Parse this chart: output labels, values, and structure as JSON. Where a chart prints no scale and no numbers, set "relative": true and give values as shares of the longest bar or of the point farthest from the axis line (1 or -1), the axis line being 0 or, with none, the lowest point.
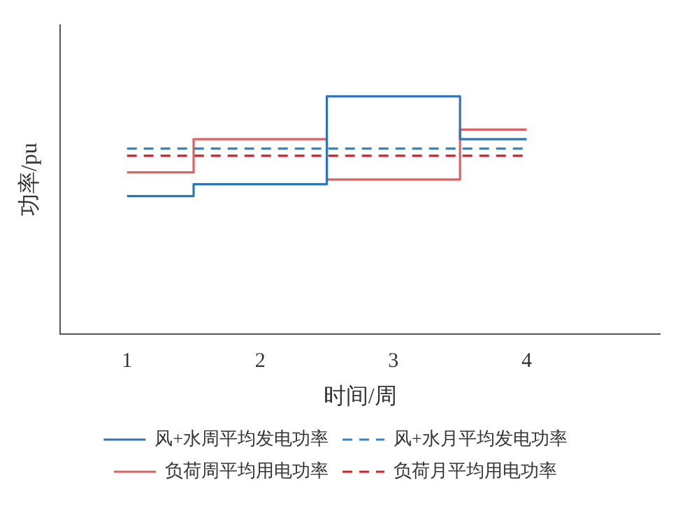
{
  "chart_data": {
    "type": "step",
    "relative": true,
    "xlabel": "时间/周",
    "ylabel": "功率/pu",
    "categories": [
      "1",
      "2",
      "3",
      "4"
    ],
    "legend": "bottom",
    "grid": false,
    "series": [
      {
        "name": "风+水周平均发电功率",
        "color": "#2e75b6",
        "values": [
          0.58,
          0.63,
          1,
          0.82
        ],
        "line_style": "solid"
      },
      {
        "name": "风+水月平均发电功率",
        "color": "#2e86d0",
        "values": [
          0.78,
          0.78,
          0.78,
          0.78
        ],
        "line_style": "dashed"
      },
      {
        "name": "负荷周平均用电功率",
        "color": "#e06060",
        "values": [
          0.68,
          0.82,
          0.65,
          0.86
        ],
        "line_style": "solid"
      },
      {
        "name": "负荷月平均用电功率",
        "color": "#d42020",
        "values": [
          0.75,
          0.75,
          0.75,
          0.75
        ],
        "line_style": "dashed"
      }
    ]
  }
}
